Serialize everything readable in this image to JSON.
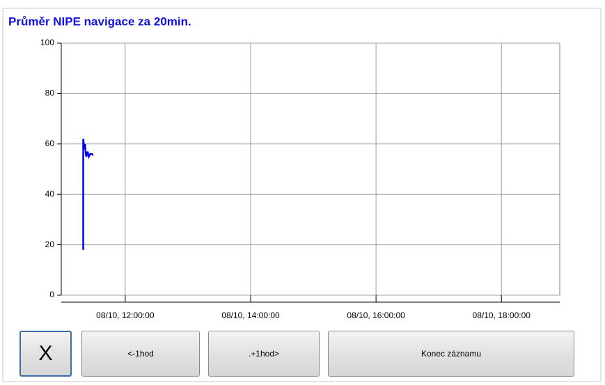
{
  "chart_data": {
    "type": "line",
    "title": "Průměr NIPE navigace za 20min.",
    "x": [
      11.33,
      11.33,
      11.35,
      11.36,
      11.37,
      11.38,
      11.4,
      11.42,
      11.44,
      11.47,
      11.49
    ],
    "values": [
      18,
      62,
      58,
      60,
      56,
      55,
      57,
      55,
      56,
      56,
      55.5
    ],
    "color": "#0000ee",
    "xlim": [
      10.98,
      18.93
    ],
    "xticks": [
      {
        "value": 12,
        "label": "08/10, 12:00:00"
      },
      {
        "value": 14,
        "label": "08/10, 14:00:00"
      },
      {
        "value": 16,
        "label": "08/10, 16:00:00"
      },
      {
        "value": 18,
        "label": "08/10, 18:00:00"
      }
    ],
    "ylim": [
      0,
      100
    ],
    "yticks": [
      0,
      20,
      40,
      60,
      80,
      100
    ],
    "grid": true
  },
  "buttons": [
    "X",
    "<-1hod",
    ".+1hod>",
    "Konec záznamu"
  ]
}
